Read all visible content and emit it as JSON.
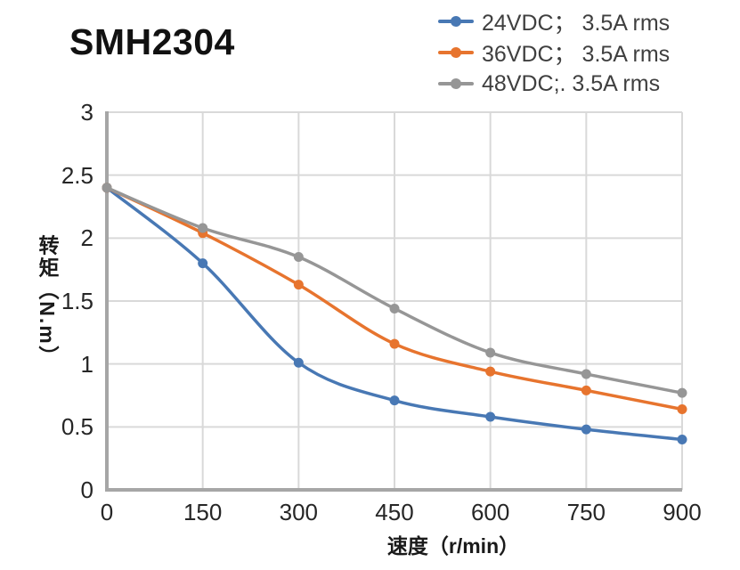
{
  "chart_data": {
    "type": "line",
    "title": "SMH2304",
    "xlabel": "速度（r/min）",
    "ylabel": "转矩（N.m）",
    "x": [
      0,
      150,
      300,
      450,
      600,
      750,
      900
    ],
    "x_ticks": [
      "0",
      "150",
      "300",
      "450",
      "600",
      "750",
      "900"
    ],
    "y_ticks": [
      "0",
      "0.5",
      "1",
      "1.5",
      "2",
      "2.5",
      "3"
    ],
    "xlim": [
      0,
      900
    ],
    "ylim": [
      0,
      3
    ],
    "grid": true,
    "smooth": true,
    "marker": "circle",
    "legend_position": "top-right",
    "series": [
      {
        "name": "24VDC； 3.5A rms",
        "color": "#4878B4",
        "values": [
          2.4,
          1.8,
          1.01,
          0.71,
          0.58,
          0.48,
          0.4
        ]
      },
      {
        "name": "36VDC； 3.5A rms",
        "color": "#E7742E",
        "values": [
          2.4,
          2.04,
          1.63,
          1.16,
          0.94,
          0.79,
          0.64
        ]
      },
      {
        "name": "48VDC;. 3.5A rms",
        "color": "#969696",
        "values": [
          2.4,
          2.08,
          1.85,
          1.44,
          1.09,
          0.92,
          0.77
        ]
      }
    ],
    "colors": {
      "gridline": "#D9D9D9",
      "axis_line": "#A6A6A6",
      "tick_text": "#262626",
      "legend_text": "#3F3F3F"
    }
  }
}
